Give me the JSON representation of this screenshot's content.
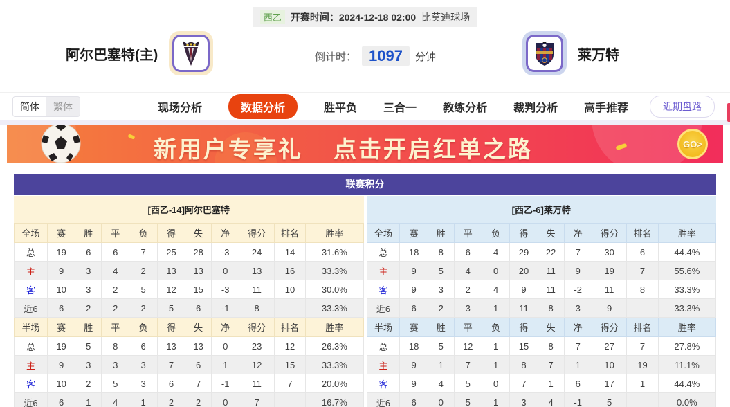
{
  "header": {
    "league": "西乙",
    "kickoff": "开赛时间：2024-12-18 02:00",
    "venue": "比莫迪球场",
    "home_team": "阿尔巴塞特(主)",
    "away_team": "莱万特",
    "countdown_label": "倒计时：",
    "countdown_value": "1097",
    "countdown_unit": "分钟"
  },
  "nav": {
    "lang_simplified": "简体",
    "lang_traditional": "繁体",
    "tabs": [
      {
        "label": "现场分析",
        "active": false
      },
      {
        "label": "数据分析",
        "active": true
      },
      {
        "label": "胜平负",
        "active": false
      },
      {
        "label": "三合一",
        "active": false
      },
      {
        "label": "教练分析",
        "active": false
      },
      {
        "label": "裁判分析",
        "active": false
      },
      {
        "label": "高手推荐",
        "active": false
      }
    ],
    "recent_trends": "近期盘路"
  },
  "banner": {
    "title": "新用户专享礼",
    "subtitle": "点击开启红单之路",
    "go_label": "GO>"
  },
  "league_table": {
    "title": "联赛积分",
    "columns_full": [
      "全场",
      "赛",
      "胜",
      "平",
      "负",
      "得",
      "失",
      "净",
      "得分",
      "排名",
      "胜率"
    ],
    "columns_half": [
      "半场",
      "赛",
      "胜",
      "平",
      "负",
      "得",
      "失",
      "净",
      "得分",
      "排名",
      "胜率"
    ],
    "home": {
      "team_header": "[西乙-14]阿尔巴塞特",
      "theme": "cream",
      "full_rows": [
        {
          "label": "总",
          "cells": [
            "19",
            "6",
            "6",
            "7",
            "25",
            "28",
            "-3",
            "24",
            "14",
            "31.6%"
          ]
        },
        {
          "label": "主",
          "cells": [
            "9",
            "3",
            "4",
            "2",
            "13",
            "13",
            "0",
            "13",
            "16",
            "33.3%"
          ]
        },
        {
          "label": "客",
          "cells": [
            "10",
            "3",
            "2",
            "5",
            "12",
            "15",
            "-3",
            "11",
            "10",
            "30.0%"
          ]
        },
        {
          "label": "近6",
          "cells": [
            "6",
            "2",
            "2",
            "2",
            "5",
            "6",
            "-1",
            "8",
            "",
            "33.3%"
          ]
        }
      ],
      "half_rows": [
        {
          "label": "总",
          "cells": [
            "19",
            "5",
            "8",
            "6",
            "13",
            "13",
            "0",
            "23",
            "12",
            "26.3%"
          ]
        },
        {
          "label": "主",
          "cells": [
            "9",
            "3",
            "3",
            "3",
            "7",
            "6",
            "1",
            "12",
            "15",
            "33.3%"
          ]
        },
        {
          "label": "客",
          "cells": [
            "10",
            "2",
            "5",
            "3",
            "6",
            "7",
            "-1",
            "11",
            "7",
            "20.0%"
          ]
        },
        {
          "label": "近6",
          "cells": [
            "6",
            "1",
            "4",
            "1",
            "2",
            "2",
            "0",
            "7",
            "",
            "16.7%"
          ]
        }
      ]
    },
    "away": {
      "team_header": "[西乙-6]莱万特",
      "theme": "blue",
      "full_rows": [
        {
          "label": "总",
          "cells": [
            "18",
            "8",
            "6",
            "4",
            "29",
            "22",
            "7",
            "30",
            "6",
            "44.4%"
          ]
        },
        {
          "label": "主",
          "cells": [
            "9",
            "5",
            "4",
            "0",
            "20",
            "11",
            "9",
            "19",
            "7",
            "55.6%"
          ]
        },
        {
          "label": "客",
          "cells": [
            "9",
            "3",
            "2",
            "4",
            "9",
            "11",
            "-2",
            "11",
            "8",
            "33.3%"
          ]
        },
        {
          "label": "近6",
          "cells": [
            "6",
            "2",
            "3",
            "1",
            "11",
            "8",
            "3",
            "9",
            "",
            "33.3%"
          ]
        }
      ],
      "half_rows": [
        {
          "label": "总",
          "cells": [
            "18",
            "5",
            "12",
            "1",
            "15",
            "8",
            "7",
            "27",
            "7",
            "27.8%"
          ]
        },
        {
          "label": "主",
          "cells": [
            "9",
            "1",
            "7",
            "1",
            "8",
            "7",
            "1",
            "10",
            "19",
            "11.1%"
          ]
        },
        {
          "label": "客",
          "cells": [
            "9",
            "4",
            "5",
            "0",
            "7",
            "1",
            "6",
            "17",
            "1",
            "44.4%"
          ]
        },
        {
          "label": "近6",
          "cells": [
            "6",
            "0",
            "5",
            "1",
            "3",
            "4",
            "-1",
            "5",
            "",
            "0.0%"
          ]
        }
      ]
    }
  },
  "colors": {
    "accent_orange": "#e8430f",
    "table_purple": "#4c449c",
    "home_header_cream": "#fdf3d8",
    "away_header_blue": "#dcebf6",
    "home_row_red": "#cc2218",
    "away_row_blue": "#2126d8",
    "league_green": "#61a14e",
    "countdown_blue": "#1d52c9",
    "banner_red": "#f22d5b"
  }
}
